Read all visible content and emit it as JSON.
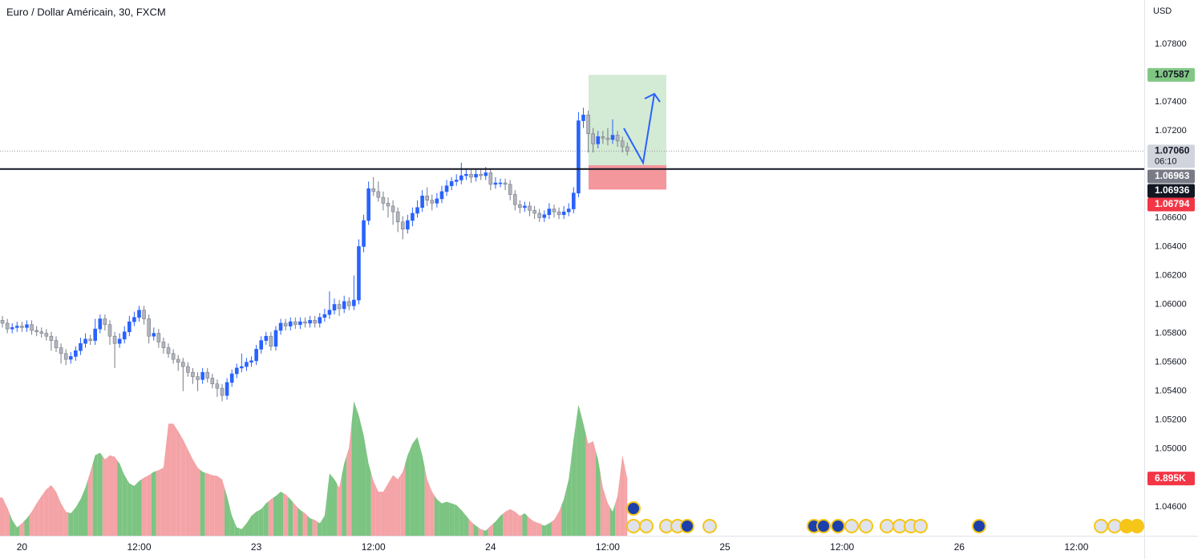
{
  "chart_data": {
    "type": "candlestick",
    "title": "Euro / Dollar Américain, 30, FXCM",
    "currency": "USD",
    "xlim": [
      -0.5,
      233.9
    ],
    "xticks": [
      {
        "value": 4,
        "label": "20"
      },
      {
        "value": 28,
        "label": "12:00"
      },
      {
        "value": 52,
        "label": "23"
      },
      {
        "value": 76,
        "label": "12:00"
      },
      {
        "value": 100,
        "label": "24"
      },
      {
        "value": 124,
        "label": "12:00"
      },
      {
        "value": 148,
        "label": "25"
      },
      {
        "value": 172,
        "label": "12:00"
      },
      {
        "value": 196,
        "label": "26"
      },
      {
        "value": 220,
        "label": "12:00"
      }
    ],
    "ylim": [
      1.044,
      1.08105
    ],
    "yticks": [
      {
        "value": 1.078,
        "label": "1.07800"
      },
      {
        "value": 1.074,
        "label": "1.07400"
      },
      {
        "value": 1.072,
        "label": "1.07200"
      },
      {
        "value": 1.066,
        "label": "1.06600"
      },
      {
        "value": 1.064,
        "label": "1.06400"
      },
      {
        "value": 1.062,
        "label": "1.06200"
      },
      {
        "value": 1.06,
        "label": "1.06000"
      },
      {
        "value": 1.058,
        "label": "1.05800"
      },
      {
        "value": 1.056,
        "label": "1.05600"
      },
      {
        "value": 1.054,
        "label": "1.05400"
      },
      {
        "value": 1.052,
        "label": "1.05200"
      },
      {
        "value": 1.05,
        "label": "1.05000"
      },
      {
        "value": 1.046,
        "label": "1.04600"
      }
    ],
    "grid": false,
    "up_color": "#2962ff",
    "down_color": "#b2b5be",
    "candles": [
      [
        1.0589,
        1.0592,
        1.0584,
        1.0587
      ],
      [
        1.0587,
        1.059,
        1.058,
        1.0583
      ],
      [
        1.0583,
        1.0587,
        1.058,
        1.0584
      ],
      [
        1.0584,
        1.0588,
        1.0581,
        1.0585
      ],
      [
        1.0585,
        1.0588,
        1.0581,
        1.0584
      ],
      [
        1.0584,
        1.0589,
        1.0581,
        1.0586
      ],
      [
        1.0586,
        1.0589,
        1.0579,
        1.0582
      ],
      [
        1.0582,
        1.0585,
        1.0578,
        1.0581
      ],
      [
        1.0581,
        1.0584,
        1.0577,
        1.058
      ],
      [
        1.058,
        1.0583,
        1.0575,
        1.0578
      ],
      [
        1.0578,
        1.0581,
        1.0568,
        1.0575
      ],
      [
        1.0575,
        1.0578,
        1.0567,
        1.057
      ],
      [
        1.057,
        1.0573,
        1.0559,
        1.0566
      ],
      [
        1.0566,
        1.0569,
        1.0558,
        1.0562
      ],
      [
        1.0562,
        1.0567,
        1.0559,
        1.0564
      ],
      [
        1.0564,
        1.0571,
        1.0561,
        1.0568
      ],
      [
        1.0568,
        1.0577,
        1.0565,
        1.0573
      ],
      [
        1.0573,
        1.058,
        1.057,
        1.0576
      ],
      [
        1.0576,
        1.0579,
        1.0572,
        1.0575
      ],
      [
        1.0575,
        1.059,
        1.0572,
        1.0583
      ],
      [
        1.0583,
        1.0593,
        1.058,
        1.059
      ],
      [
        1.059,
        1.0593,
        1.0582,
        1.0586
      ],
      [
        1.0586,
        1.0589,
        1.0572,
        1.0578
      ],
      [
        1.0578,
        1.0581,
        1.0556,
        1.0573
      ],
      [
        1.0573,
        1.058,
        1.057,
        1.0576
      ],
      [
        1.0576,
        1.0585,
        1.0573,
        1.0581
      ],
      [
        1.0581,
        1.0592,
        1.0578,
        1.0588
      ],
      [
        1.0588,
        1.0595,
        1.0585,
        1.0591
      ],
      [
        1.0591,
        1.0599,
        1.0588,
        1.0596
      ],
      [
        1.0596,
        1.0599,
        1.0586,
        1.059
      ],
      [
        1.059,
        1.0593,
        1.0573,
        1.0578
      ],
      [
        1.0578,
        1.0584,
        1.0575,
        1.058
      ],
      [
        1.058,
        1.0583,
        1.057,
        1.0574
      ],
      [
        1.0574,
        1.0577,
        1.0566,
        1.057
      ],
      [
        1.057,
        1.0573,
        1.0563,
        1.0566
      ],
      [
        1.0566,
        1.0569,
        1.0559,
        1.0562
      ],
      [
        1.0562,
        1.0565,
        1.0554,
        1.056
      ],
      [
        1.056,
        1.0563,
        1.054,
        1.0557
      ],
      [
        1.0557,
        1.056,
        1.055,
        1.0553
      ],
      [
        1.0553,
        1.0556,
        1.0545,
        1.055
      ],
      [
        1.055,
        1.0553,
        1.054,
        1.0548
      ],
      [
        1.0548,
        1.0556,
        1.0545,
        1.0553
      ],
      [
        1.0553,
        1.0556,
        1.0546,
        1.0549
      ],
      [
        1.0549,
        1.0552,
        1.0542,
        1.0545
      ],
      [
        1.0545,
        1.0548,
        1.0536,
        1.0542
      ],
      [
        1.0542,
        1.0545,
        1.0533,
        1.0537
      ],
      [
        1.0537,
        1.0549,
        1.0534,
        1.0546
      ],
      [
        1.0546,
        1.0555,
        1.0543,
        1.0552
      ],
      [
        1.0552,
        1.0559,
        1.0549,
        1.0556
      ],
      [
        1.0556,
        1.0566,
        1.0553,
        1.0557
      ],
      [
        1.0557,
        1.0563,
        1.0554,
        1.056
      ],
      [
        1.056,
        1.0564,
        1.0557,
        1.0561
      ],
      [
        1.0561,
        1.0572,
        1.0558,
        1.0569
      ],
      [
        1.0569,
        1.0578,
        1.0566,
        1.0575
      ],
      [
        1.0575,
        1.0581,
        1.0572,
        1.0578
      ],
      [
        1.0578,
        1.0581,
        1.0568,
        1.0571
      ],
      [
        1.0571,
        1.0585,
        1.0568,
        1.0582
      ],
      [
        1.0582,
        1.059,
        1.0579,
        1.0587
      ],
      [
        1.0587,
        1.059,
        1.0582,
        1.0585
      ],
      [
        1.0585,
        1.0591,
        1.0582,
        1.0588
      ],
      [
        1.0588,
        1.0591,
        1.0583,
        1.0586
      ],
      [
        1.0586,
        1.0591,
        1.0583,
        1.0588
      ],
      [
        1.0588,
        1.0591,
        1.0584,
        1.0587
      ],
      [
        1.0587,
        1.0592,
        1.0584,
        1.0589
      ],
      [
        1.0589,
        1.0592,
        1.0584,
        1.0587
      ],
      [
        1.0587,
        1.0594,
        1.0584,
        1.0591
      ],
      [
        1.0591,
        1.0597,
        1.0588,
        1.0593
      ],
      [
        1.0593,
        1.0609,
        1.059,
        1.0596
      ],
      [
        1.0596,
        1.0604,
        1.0593,
        1.06
      ],
      [
        1.06,
        1.0603,
        1.0592,
        1.0597
      ],
      [
        1.0597,
        1.0606,
        1.0594,
        1.0602
      ],
      [
        1.0602,
        1.0605,
        1.0596,
        1.0599
      ],
      [
        1.0599,
        1.062,
        1.0596,
        1.0603
      ],
      [
        1.0603,
        1.0645,
        1.06,
        1.064
      ],
      [
        1.064,
        1.0662,
        1.0636,
        1.0658
      ],
      [
        1.0658,
        1.0685,
        1.0655,
        1.068
      ],
      [
        1.068,
        1.0688,
        1.0675,
        1.0678
      ],
      [
        1.0678,
        1.0685,
        1.0671,
        1.0674
      ],
      [
        1.0674,
        1.0678,
        1.0665,
        1.067
      ],
      [
        1.067,
        1.0674,
        1.066,
        1.0668
      ],
      [
        1.0668,
        1.0672,
        1.0655,
        1.0664
      ],
      [
        1.0664,
        1.0667,
        1.065,
        1.0657
      ],
      [
        1.0657,
        1.0661,
        1.0645,
        1.0652
      ],
      [
        1.0652,
        1.0662,
        1.0649,
        1.0658
      ],
      [
        1.0658,
        1.0667,
        1.0654,
        1.0663
      ],
      [
        1.0663,
        1.0672,
        1.066,
        1.0667
      ],
      [
        1.0667,
        1.0679,
        1.0664,
        1.0675
      ],
      [
        1.0675,
        1.0681,
        1.0668,
        1.0672
      ],
      [
        1.0672,
        1.0676,
        1.0665,
        1.067
      ],
      [
        1.067,
        1.0677,
        1.0667,
        1.0673
      ],
      [
        1.0673,
        1.0682,
        1.067,
        1.0678
      ],
      [
        1.0678,
        1.0686,
        1.0675,
        1.0682
      ],
      [
        1.0682,
        1.0688,
        1.0679,
        1.0685
      ],
      [
        1.0685,
        1.069,
        1.0682,
        1.0686
      ],
      [
        1.0686,
        1.0698,
        1.0683,
        1.0689
      ],
      [
        1.0689,
        1.0694,
        1.0686,
        1.069
      ],
      [
        1.069,
        1.0693,
        1.0684,
        1.0688
      ],
      [
        1.0688,
        1.0694,
        1.0685,
        1.069
      ],
      [
        1.069,
        1.0693,
        1.0686,
        1.0689
      ],
      [
        1.0689,
        1.0695,
        1.0686,
        1.0691
      ],
      [
        1.0691,
        1.0694,
        1.0679,
        1.0683
      ],
      [
        1.0683,
        1.0688,
        1.068,
        1.0684
      ],
      [
        1.0684,
        1.0687,
        1.0681,
        1.0684
      ],
      [
        1.0684,
        1.0687,
        1.0679,
        1.0683
      ],
      [
        1.0683,
        1.0686,
        1.0672,
        1.0676
      ],
      [
        1.0676,
        1.0679,
        1.0665,
        1.0669
      ],
      [
        1.0669,
        1.0672,
        1.0663,
        1.0667
      ],
      [
        1.0667,
        1.0671,
        1.0664,
        1.0668
      ],
      [
        1.0668,
        1.0671,
        1.0661,
        1.0665
      ],
      [
        1.0665,
        1.0668,
        1.0659,
        1.0663
      ],
      [
        1.0663,
        1.0666,
        1.0657,
        1.066
      ],
      [
        1.066,
        1.0665,
        1.0657,
        1.0662
      ],
      [
        1.0662,
        1.067,
        1.0659,
        1.0666
      ],
      [
        1.0666,
        1.0669,
        1.066,
        1.0664
      ],
      [
        1.0664,
        1.0667,
        1.0659,
        1.0662
      ],
      [
        1.0662,
        1.0668,
        1.0659,
        1.0664
      ],
      [
        1.0664,
        1.067,
        1.0661,
        1.0666
      ],
      [
        1.0666,
        1.0681,
        1.0663,
        1.0677
      ],
      [
        1.0677,
        1.0733,
        1.0674,
        1.0727
      ],
      [
        1.0727,
        1.0736,
        1.0722,
        1.0731
      ],
      [
        1.0731,
        1.0734,
        1.0705,
        1.0718
      ],
      [
        1.0718,
        1.0722,
        1.0705,
        1.0711
      ],
      [
        1.0711,
        1.072,
        1.0708,
        1.0716
      ],
      [
        1.0716,
        1.072,
        1.0711,
        1.0715
      ],
      [
        1.0715,
        1.0722,
        1.071,
        1.0714
      ],
      [
        1.0714,
        1.0728,
        1.0711,
        1.0717
      ],
      [
        1.0717,
        1.072,
        1.0709,
        1.0713
      ],
      [
        1.0713,
        1.0716,
        1.0705,
        1.0709
      ],
      [
        1.0709,
        1.0712,
        1.0703,
        1.0706
      ]
    ],
    "vlim": [
      0,
      20000
    ],
    "volume_up_color": "#7cc482",
    "volume_down_color": "#f4a3a6",
    "volumes": [
      4600,
      3400,
      1900,
      1000,
      1500,
      2100,
      2900,
      3900,
      4800,
      5600,
      6100,
      5300,
      3900,
      2900,
      2700,
      3400,
      4400,
      5800,
      7700,
      9700,
      10000,
      9200,
      9700,
      9500,
      8700,
      7300,
      6300,
      6000,
      6600,
      7000,
      7300,
      7700,
      7900,
      8200,
      13500,
      13500,
      12600,
      11600,
      10400,
      9200,
      8200,
      7700,
      7500,
      7300,
      7200,
      6800,
      4800,
      2400,
      1000,
      800,
      1500,
      2400,
      2900,
      3200,
      3900,
      4400,
      4800,
      5300,
      5000,
      4400,
      3700,
      3100,
      2700,
      2100,
      1900,
      1500,
      2400,
      7500,
      6800,
      5800,
      8700,
      10600,
      16200,
      14500,
      12100,
      8700,
      6600,
      5300,
      5300,
      6300,
      7300,
      6800,
      7700,
      9700,
      11100,
      11900,
      9700,
      6800,
      5300,
      4400,
      3900,
      4100,
      3900,
      3700,
      3100,
      2400,
      1700,
      1200,
      800,
      600,
      1200,
      1700,
      2400,
      2900,
      3200,
      2900,
      2400,
      2700,
      2100,
      1700,
      1500,
      1200,
      1500,
      1900,
      2900,
      4400,
      6800,
      11600,
      15800,
      13500,
      11100,
      11400,
      9200,
      5800,
      3900,
      2900,
      4800,
      9700,
      6895
    ],
    "volume_label": {
      "value": 6895,
      "label": "6.895K"
    },
    "position": {
      "target": 1.07587,
      "entry": 1.06963,
      "stop": 1.06794,
      "profit_color": "#d3ead4",
      "loss_color": "#f4979c"
    },
    "horizontal_line": 1.06936,
    "last_price": {
      "value": 1.0706,
      "label": "1.07060"
    },
    "countdown": "06:10"
  }
}
